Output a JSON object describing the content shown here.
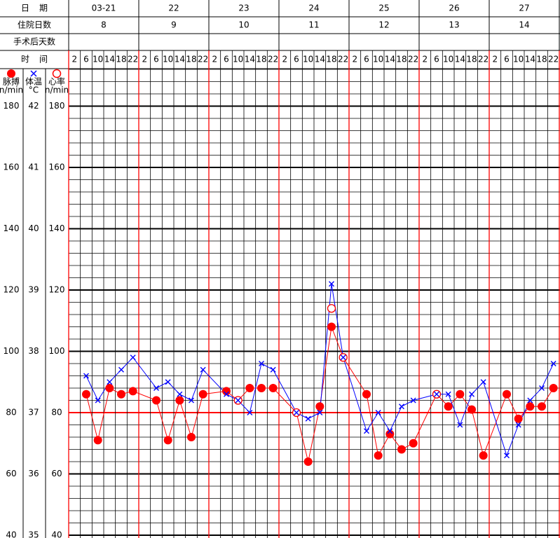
{
  "header": {
    "rows": [
      {
        "label": "日期",
        "cells": [
          "03-21",
          "22",
          "23",
          "24",
          "25",
          "26",
          "27"
        ]
      },
      {
        "label": "住院日数",
        "cells": [
          "8",
          "9",
          "10",
          "11",
          "12",
          "13",
          "14"
        ]
      },
      {
        "label": "手术后天数"
      },
      {
        "label": "时间"
      }
    ]
  },
  "chart_data": {
    "type": "line",
    "categories": [
      "2",
      "6",
      "10",
      "14",
      "18",
      "22",
      "2",
      "6",
      "10",
      "14",
      "18",
      "22",
      "2",
      "6",
      "10",
      "14",
      "18",
      "22",
      "2",
      "6",
      "10",
      "14",
      "18",
      "22",
      "2",
      "6",
      "10",
      "14",
      "18",
      "22",
      "2",
      "6",
      "10",
      "14",
      "18",
      "22",
      "2",
      "6",
      "10",
      "14",
      "18",
      "22"
    ],
    "category_colors": [
      "#ff0000",
      "#000000",
      "#000000",
      "#000000",
      "#ff0000",
      "#ff0000"
    ],
    "day_line_color": "#ff0000",
    "series": [
      {
        "name": "脉搏",
        "unit": "n/min",
        "color": "#ff0000",
        "marker": "dot",
        "values": [
          null,
          86,
          71,
          88,
          86,
          87,
          null,
          84,
          71,
          84,
          72,
          86,
          null,
          87,
          84,
          88,
          88,
          88,
          null,
          80,
          64,
          82,
          108,
          98,
          null,
          86,
          66,
          73,
          68,
          70,
          null,
          86,
          82,
          86,
          81,
          66,
          null,
          86,
          78,
          82,
          82,
          88
        ]
      },
      {
        "name": "体温",
        "unit": "°C",
        "color": "#0000ff",
        "marker": "x",
        "axis": "y2",
        "values": [
          null,
          37.6,
          37.2,
          37.5,
          37.7,
          37.9,
          null,
          37.4,
          37.5,
          37.3,
          37.2,
          37.7,
          null,
          37.3,
          37.2,
          37,
          37.8,
          37.7,
          null,
          37,
          36.9,
          37,
          39.1,
          37.9,
          null,
          36.7,
          37,
          36.7,
          37.1,
          37.2,
          null,
          37.3,
          37.3,
          36.8,
          37.3,
          37.5,
          null,
          36.3,
          36.8,
          37.2,
          37.4,
          37.8
        ]
      },
      {
        "name": "心率",
        "unit": "n/min",
        "color": "#ff0000",
        "marker": "circle",
        "values": [
          null,
          null,
          null,
          null,
          null,
          null,
          null,
          null,
          null,
          null,
          null,
          null,
          null,
          null,
          null,
          null,
          null,
          null,
          null,
          null,
          null,
          null,
          114,
          null,
          null,
          null,
          null,
          null,
          null,
          null,
          null,
          null,
          null,
          null,
          null,
          null,
          null,
          null,
          null,
          null,
          null,
          null
        ]
      }
    ],
    "ylim": [
      40,
      192
    ],
    "yticks": [
      40,
      60,
      80,
      100,
      120,
      140,
      160,
      180
    ],
    "y2lim": [
      35,
      42.6
    ],
    "y2ticks": [
      35,
      36,
      37,
      38,
      39,
      40,
      41,
      42
    ],
    "minor_step": 4,
    "grid": true,
    "reference_line": {
      "value": 37,
      "axis": "y2",
      "color": "#ff0000"
    }
  }
}
